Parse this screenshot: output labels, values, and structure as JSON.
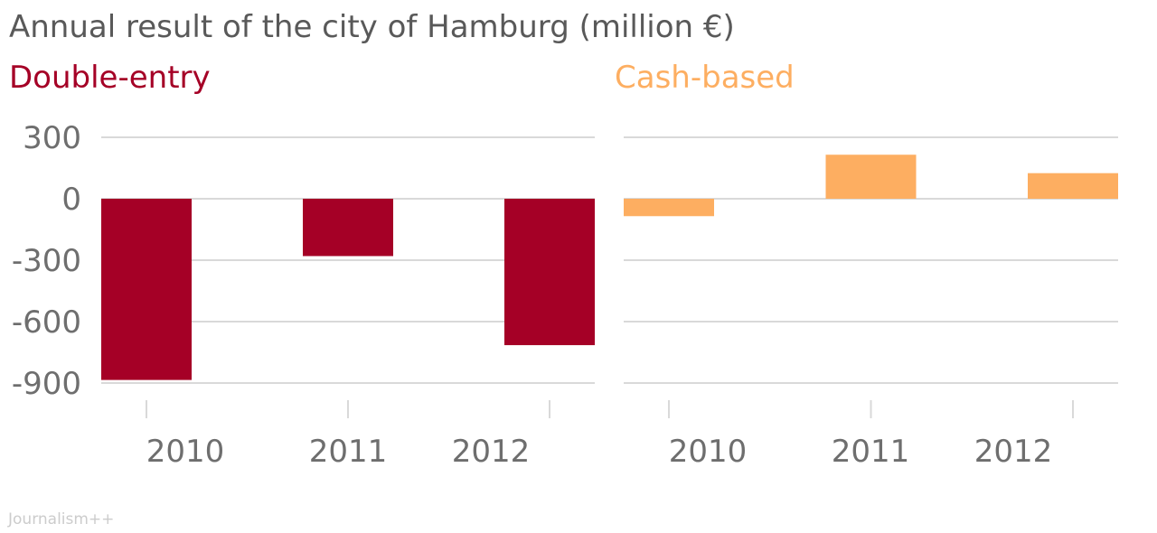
{
  "title": "Annual result of the city of Hamburg (million €)",
  "credit": "Journalism++",
  "colors": {
    "double_entry": "#a50026",
    "cash_based": "#fdae61",
    "grid": "#d9d9d9",
    "text": "#6e6e6e"
  },
  "chart_data": [
    {
      "type": "bar",
      "title": "Double-entry",
      "color": "#a50026",
      "categories": [
        "2010",
        "2011",
        "2012"
      ],
      "values": [
        -885,
        -280,
        -715
      ],
      "ylim": [
        -900,
        300
      ],
      "yticks": [
        "300",
        "0",
        "-300",
        "-600",
        "-900"
      ],
      "grid": true
    },
    {
      "type": "bar",
      "title": "Cash-based",
      "color": "#fdae61",
      "categories": [
        "2010",
        "2011",
        "2012"
      ],
      "values": [
        -85,
        215,
        125
      ],
      "ylim": [
        -900,
        300
      ],
      "grid": true
    }
  ]
}
